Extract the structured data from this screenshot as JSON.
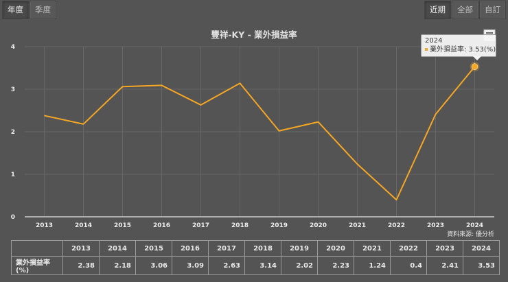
{
  "period_buttons": [
    {
      "label": "年度",
      "active": true
    },
    {
      "label": "季度",
      "active": false
    }
  ],
  "range_buttons": [
    {
      "label": "近期",
      "active": true
    },
    {
      "label": "全部",
      "active": false
    },
    {
      "label": "自訂",
      "active": false
    }
  ],
  "title": "豐祥-KY - 業外損益率",
  "tooltip": {
    "year": "2024",
    "series_label": "業外損益率: 3.53(%)"
  },
  "source": "資料來源: 優分析",
  "table": {
    "row_label": "業外損益率(%)",
    "years": [
      "2013",
      "2014",
      "2015",
      "2016",
      "2017",
      "2018",
      "2019",
      "2020",
      "2021",
      "2022",
      "2023",
      "2024"
    ],
    "values": [
      "2.38",
      "2.18",
      "3.06",
      "3.09",
      "2.63",
      "3.14",
      "2.02",
      "2.23",
      "1.24",
      "0.4",
      "2.41",
      "3.53"
    ]
  },
  "colors": {
    "background": "#545454",
    "line": "#f5a623",
    "grid": "#666666",
    "axis": "#cccccc"
  },
  "chart_data": {
    "type": "line",
    "title": "豐祥-KY - 業外損益率",
    "xlabel": "",
    "ylabel": "",
    "categories": [
      "2013",
      "2014",
      "2015",
      "2016",
      "2017",
      "2018",
      "2019",
      "2020",
      "2021",
      "2022",
      "2023",
      "2024"
    ],
    "series": [
      {
        "name": "業外損益率",
        "unit": "%",
        "values": [
          2.38,
          2.18,
          3.06,
          3.09,
          2.63,
          3.14,
          2.02,
          2.23,
          1.24,
          0.4,
          2.41,
          3.53
        ]
      }
    ],
    "yticks": [
      "0",
      "1",
      "2",
      "3",
      "4"
    ],
    "ylim": [
      0,
      4
    ],
    "grid": true,
    "legend": "none",
    "highlighted_point": {
      "x": "2024",
      "y": 3.53
    }
  }
}
